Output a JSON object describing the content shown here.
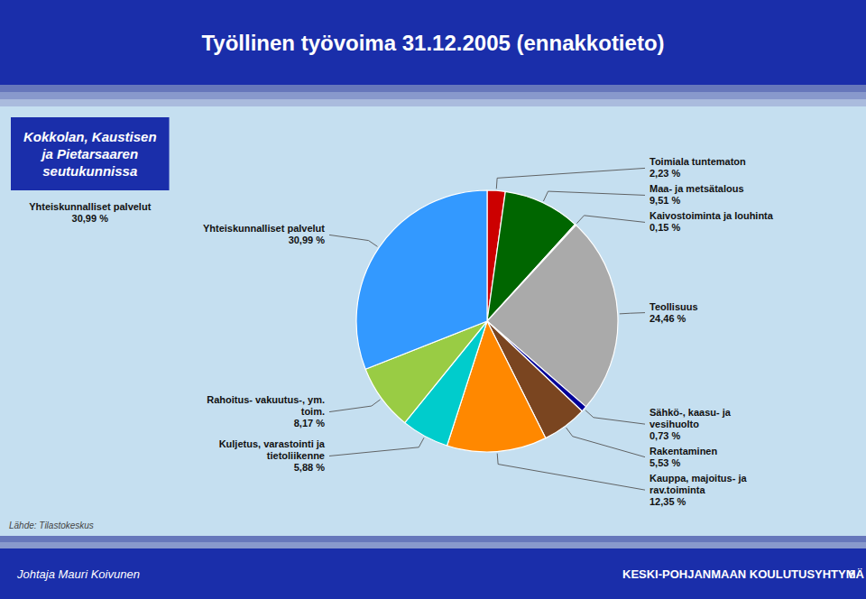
{
  "chart_data": {
    "type": "pie",
    "title": "Työllinen työvoima 31.12.2005 (ennakkotieto)",
    "subtitle": "Kokkolan, Kaustisen\nja Pietarsaaren\nseutukunnissa",
    "categories": [
      "Toimiala tuntematon",
      "Maa- ja metsätalous",
      "Kaivostoiminta ja louhinta",
      "Teollisuus",
      "Sähkö-, kaasu- ja\nvesihuolto",
      "Rakentaminen",
      "Kauppa, majoitus- ja\nrav.toiminta",
      "Kuljetus, varastointi ja\ntietoliikenne",
      "Rahoitus- vakuutus-, ym.\ntoim.",
      "Yhteiskunnalliset palvelut"
    ],
    "values": [
      2.23,
      9.51,
      0.15,
      24.46,
      0.73,
      5.53,
      12.35,
      5.88,
      8.17,
      30.99
    ],
    "value_labels": [
      "2,23 %",
      "9,51 %",
      "0,15 %",
      "24,46 %",
      "0,73 %",
      "5,53 %",
      "12,35 %",
      "5,88 %",
      "8,17 %",
      "30,99 %"
    ],
    "colors": [
      "#cc0000",
      "#006600",
      "#cc99cc",
      "#aaaaaa",
      "#000099",
      "#7a4520",
      "#ff8800",
      "#00cccc",
      "#99cc44",
      "#3399ff"
    ],
    "data_labels": true,
    "annotations": [
      "Lähde: Tilastokeskus",
      "Johtaja Mauri Koivunen",
      "KESKI-POHJANMAAN KOULUTUSYHTYMÄ",
      "6"
    ]
  }
}
